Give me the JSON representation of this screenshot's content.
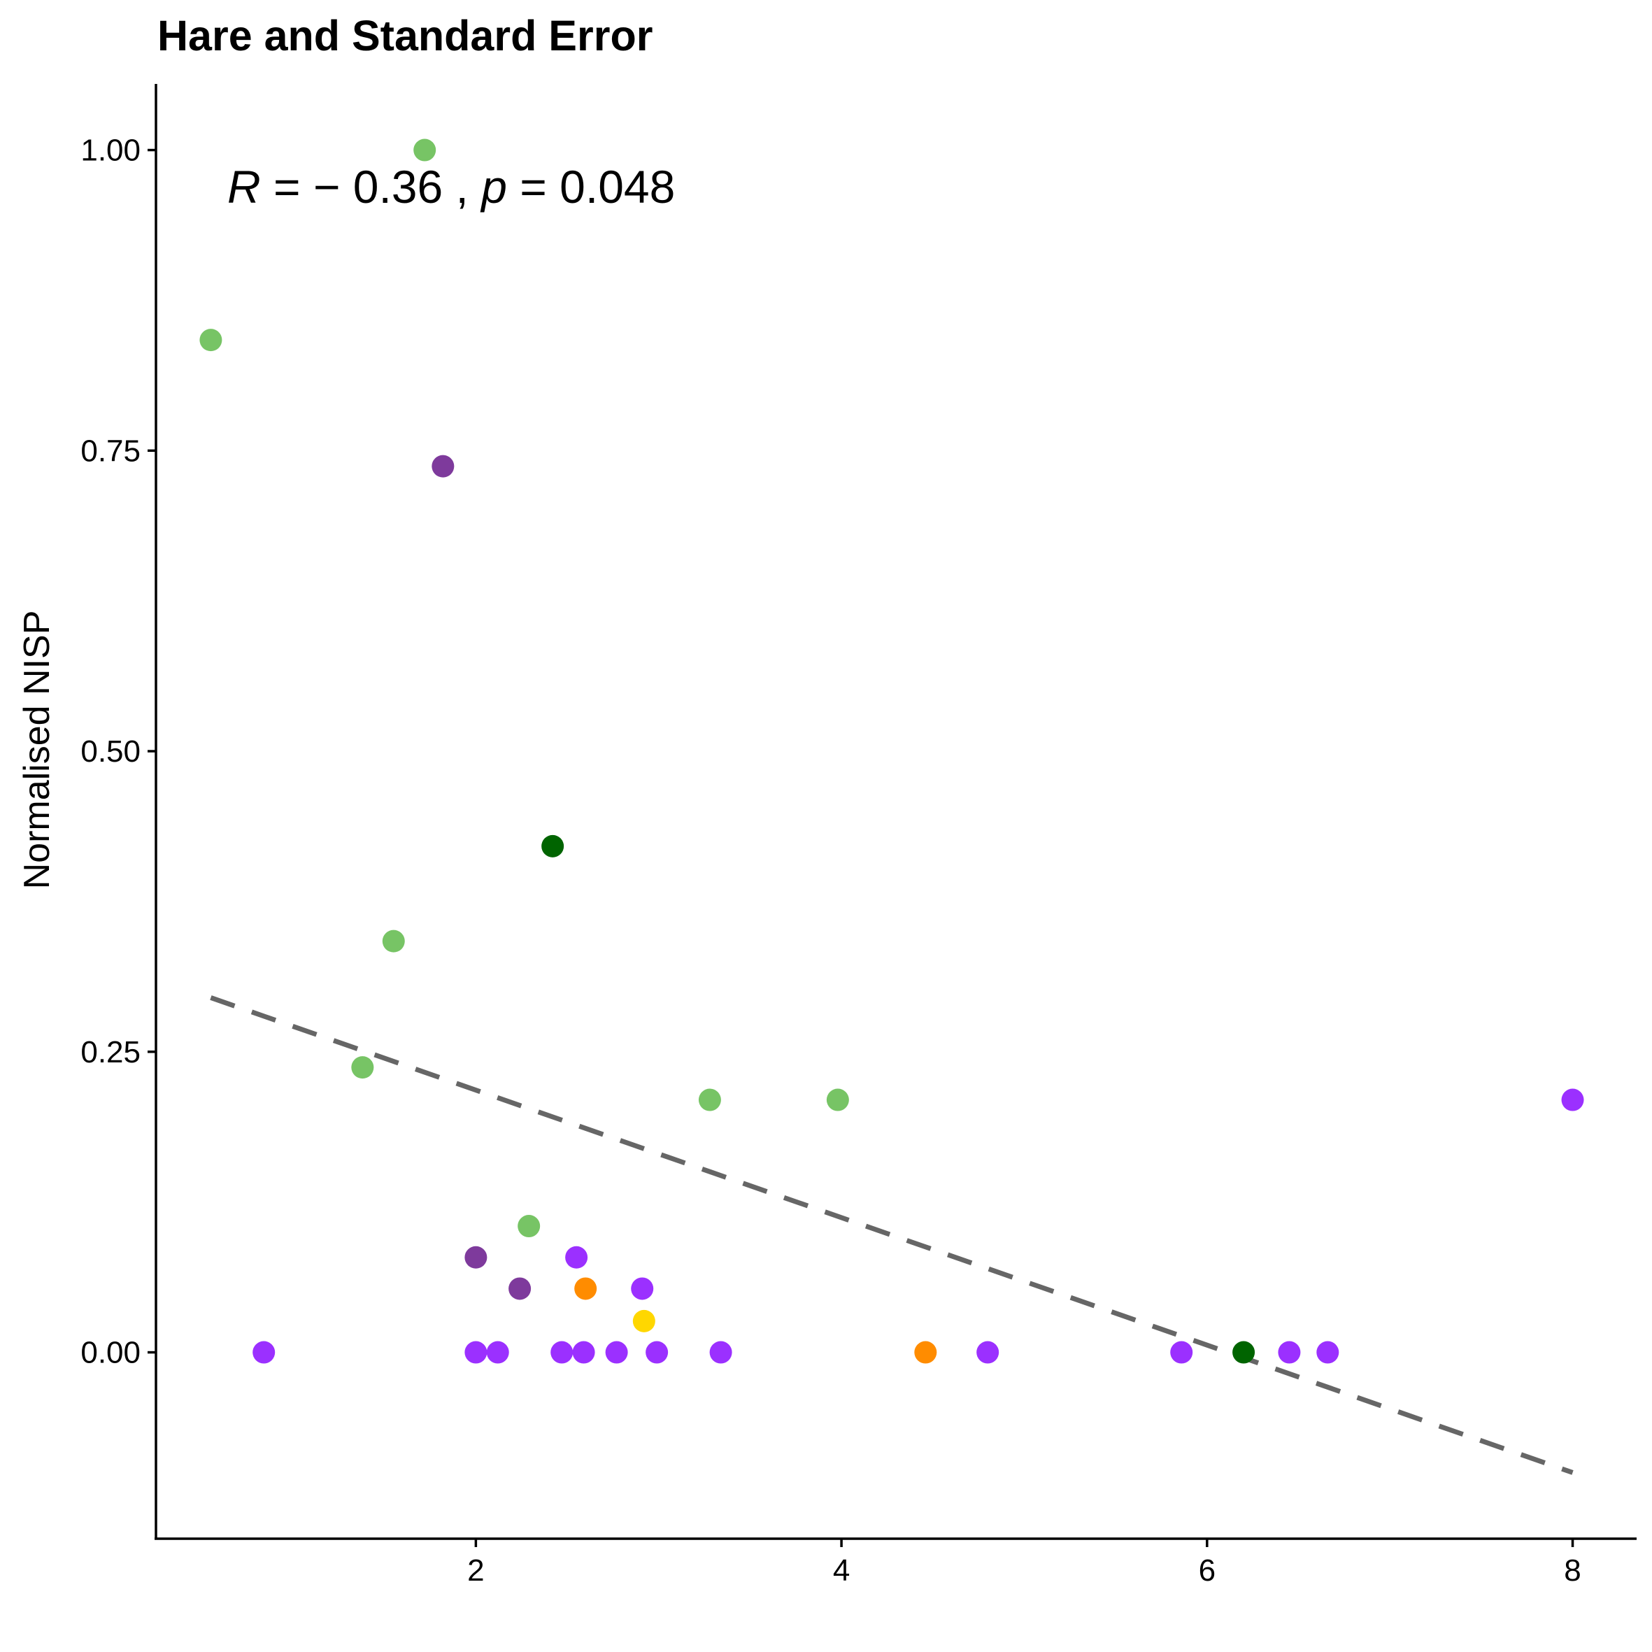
{
  "chart_data": {
    "type": "scatter",
    "title": "Hare and Standard Error",
    "xlabel": "",
    "ylabel": "Normalised NISP",
    "xlim": [
      0.25,
      8.35
    ],
    "ylim": [
      -0.155,
      1.055
    ],
    "x_ticks": [
      {
        "value": 2,
        "label": "2"
      },
      {
        "value": 4,
        "label": "4"
      },
      {
        "value": 6,
        "label": "6"
      },
      {
        "value": 8,
        "label": "8"
      }
    ],
    "y_ticks": [
      {
        "value": 0.0,
        "label": "0.00"
      },
      {
        "value": 0.25,
        "label": "0.25"
      },
      {
        "value": 0.5,
        "label": "0.50"
      },
      {
        "value": 0.75,
        "label": "0.75"
      },
      {
        "value": 1.0,
        "label": "1.00"
      }
    ],
    "grid": false,
    "legend": "none",
    "annotation": {
      "R_symbol": "R",
      "R_text": " = − 0.36 , ",
      "p_symbol": "p",
      "p_text": " = 0.048"
    },
    "trend_line": {
      "style": "dashed",
      "color": "#666666",
      "x": [
        0.55,
        8.0
      ],
      "y": [
        0.295,
        -0.1
      ]
    },
    "points": [
      {
        "x": 0.55,
        "y": 0.842,
        "color": "#77C465"
      },
      {
        "x": 1.72,
        "y": 1.0,
        "color": "#77C465"
      },
      {
        "x": 1.55,
        "y": 0.342,
        "color": "#77C465"
      },
      {
        "x": 1.38,
        "y": 0.237,
        "color": "#77C465"
      },
      {
        "x": 2.29,
        "y": 0.105,
        "color": "#77C465"
      },
      {
        "x": 3.28,
        "y": 0.21,
        "color": "#77C465"
      },
      {
        "x": 3.98,
        "y": 0.21,
        "color": "#77C465"
      },
      {
        "x": 1.82,
        "y": 0.737,
        "color": "#7E3A9C"
      },
      {
        "x": 2.0,
        "y": 0.079,
        "color": "#7E3A9C"
      },
      {
        "x": 2.24,
        "y": 0.053,
        "color": "#7E3A9C"
      },
      {
        "x": 2.42,
        "y": 0.421,
        "color": "#006400"
      },
      {
        "x": 6.2,
        "y": 0.0,
        "color": "#006400"
      },
      {
        "x": 2.6,
        "y": 0.053,
        "color": "#FF8C00"
      },
      {
        "x": 4.46,
        "y": 0.0,
        "color": "#FF8C00"
      },
      {
        "x": 2.92,
        "y": 0.026,
        "color": "#FFD700"
      },
      {
        "x": 0.84,
        "y": 0.0,
        "color": "#9B30FF"
      },
      {
        "x": 2.0,
        "y": 0.0,
        "color": "#9B30FF"
      },
      {
        "x": 2.12,
        "y": 0.0,
        "color": "#9B30FF"
      },
      {
        "x": 2.47,
        "y": 0.0,
        "color": "#9B30FF"
      },
      {
        "x": 2.59,
        "y": 0.0,
        "color": "#9B30FF"
      },
      {
        "x": 2.77,
        "y": 0.0,
        "color": "#9B30FF"
      },
      {
        "x": 2.99,
        "y": 0.0,
        "color": "#9B30FF"
      },
      {
        "x": 3.34,
        "y": 0.0,
        "color": "#9B30FF"
      },
      {
        "x": 4.8,
        "y": 0.0,
        "color": "#9B30FF"
      },
      {
        "x": 5.86,
        "y": 0.0,
        "color": "#9B30FF"
      },
      {
        "x": 6.45,
        "y": 0.0,
        "color": "#9B30FF"
      },
      {
        "x": 6.66,
        "y": 0.0,
        "color": "#9B30FF"
      },
      {
        "x": 2.55,
        "y": 0.079,
        "color": "#9B30FF"
      },
      {
        "x": 2.91,
        "y": 0.053,
        "color": "#9B30FF"
      },
      {
        "x": 8.0,
        "y": 0.21,
        "color": "#9B30FF"
      }
    ]
  }
}
